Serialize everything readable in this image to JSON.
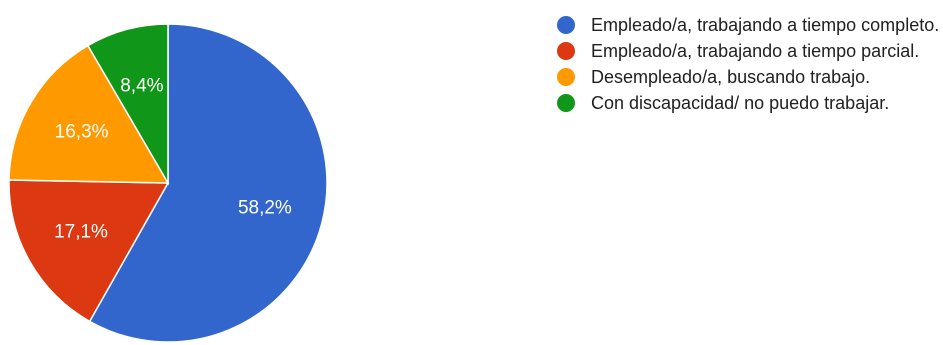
{
  "chart_data": {
    "type": "pie",
    "title": "",
    "start_angle": "12 o'clock",
    "direction": "clockwise",
    "legend_position": "right",
    "slices": [
      {
        "label": "Empleado/a, trabajando a tiempo completo.",
        "value": 58.2,
        "value_label": "58,2%",
        "color": "#3366cc"
      },
      {
        "label": "Empleado/a, trabajando a tiempo parcial.",
        "value": 17.1,
        "value_label": "17,1%",
        "color": "#dc3912"
      },
      {
        "label": "Desempleado/a, buscando trabajo.",
        "value": 16.3,
        "value_label": "16,3%",
        "color": "#ff9900"
      },
      {
        "label": "Con discapacidad/ no puedo trabajar.",
        "value": 8.4,
        "value_label": "8,4%",
        "color": "#109618"
      }
    ]
  }
}
